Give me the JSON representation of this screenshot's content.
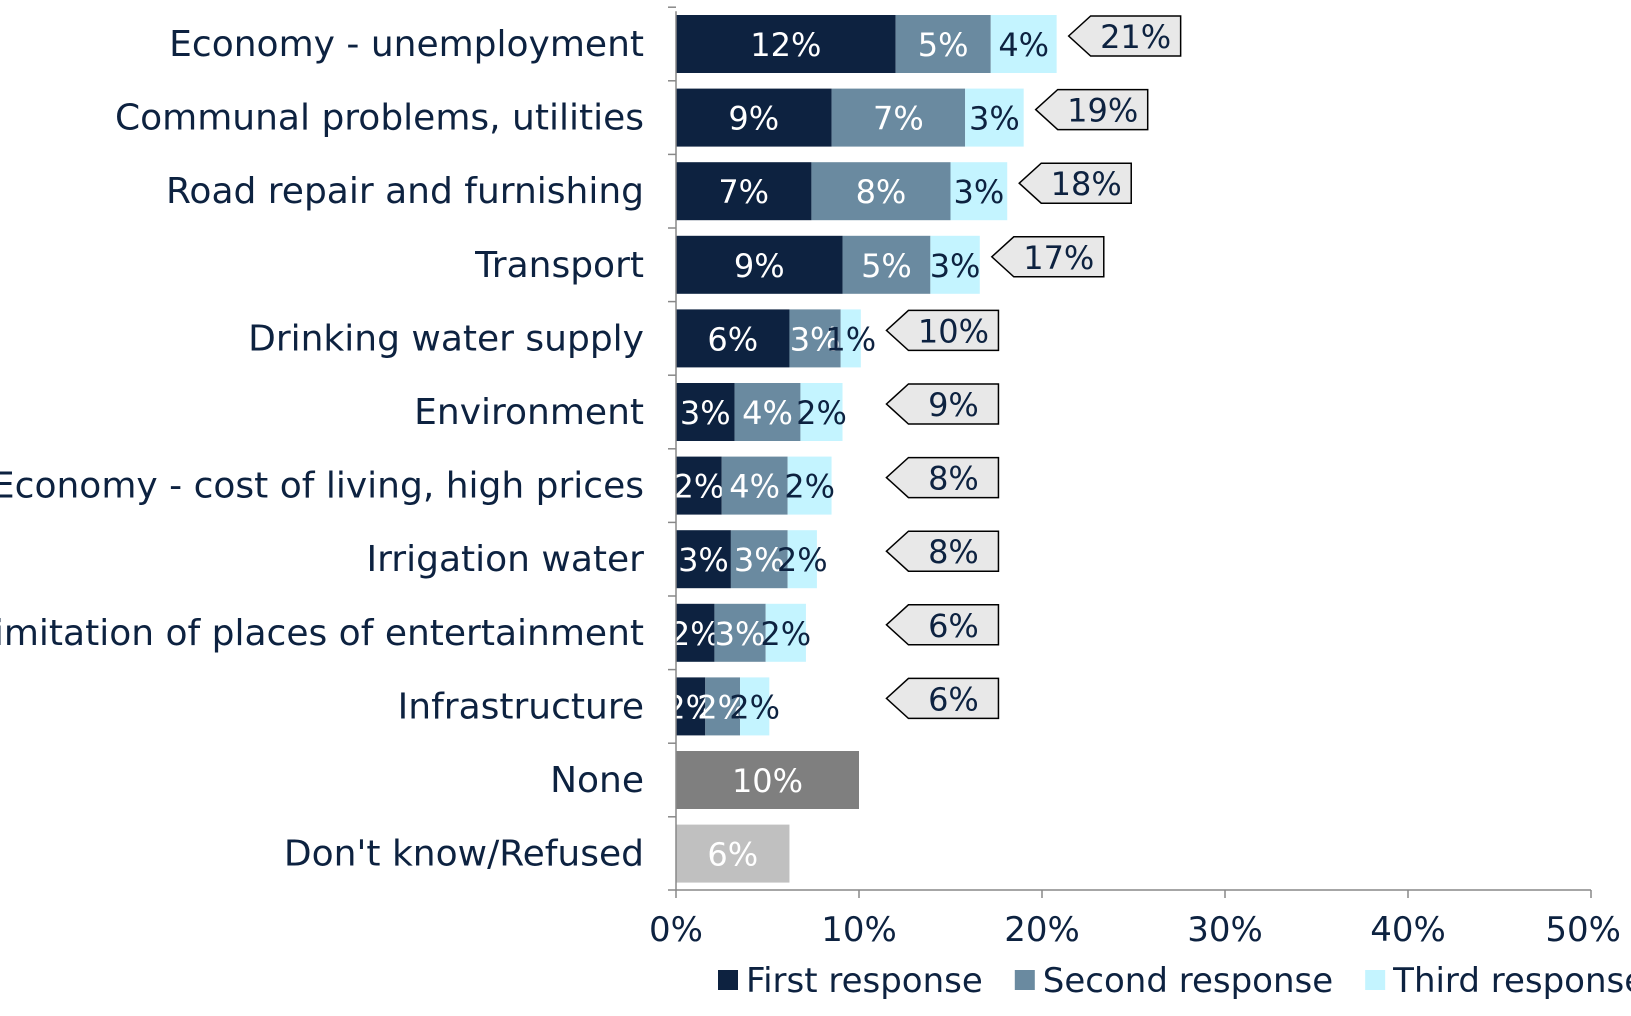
{
  "chart_data": {
    "type": "bar",
    "orientation": "horizontal",
    "stacked": true,
    "categories": [
      "Economy - unemployment",
      "Communal problems, utilities",
      "Road repair and furnishing",
      "Transport",
      "Drinking water supply",
      "Environment",
      "Economy - cost of living, high prices",
      "Irrigation water",
      "Limitation of places of entertainment",
      "Infrastructure",
      "None",
      "Don't know/Refused"
    ],
    "series": [
      {
        "name": "First response",
        "color": "#0d2240",
        "values": [
          12,
          8.5,
          7.4,
          9.1,
          6.2,
          3.2,
          2.5,
          3.0,
          2.1,
          1.6,
          null,
          null
        ],
        "labels": [
          "12%",
          "9%",
          "7%",
          "9%",
          "6%",
          "3%",
          "2%",
          "3%",
          "2%",
          "2%",
          "",
          ""
        ]
      },
      {
        "name": "Second response",
        "color": "#6a8aa0",
        "values": [
          5.2,
          7.3,
          7.6,
          4.8,
          2.8,
          3.6,
          3.6,
          3.1,
          2.8,
          1.9,
          null,
          null
        ],
        "labels": [
          "5%",
          "7%",
          "8%",
          "5%",
          "3%",
          "4%",
          "4%",
          "3%",
          "3%",
          "2%",
          "",
          ""
        ]
      },
      {
        "name": "Third response",
        "color": "#c4f4ff",
        "values": [
          3.6,
          3.2,
          3.1,
          2.7,
          1.1,
          2.3,
          2.4,
          1.6,
          2.2,
          1.6,
          null,
          null
        ],
        "labels": [
          "4%",
          "3%",
          "3%",
          "3%",
          "1%",
          "2%",
          "2%",
          "2%",
          "2%",
          "2%",
          "",
          ""
        ]
      }
    ],
    "single_bars": [
      {
        "category_index": 10,
        "value": 10.0,
        "label": "10%",
        "color": "#7f7f7f"
      },
      {
        "category_index": 11,
        "value": 6.2,
        "label": "6%",
        "color": "#c0c0c0"
      }
    ],
    "totals": [
      {
        "category_index": 0,
        "label": "21%",
        "value": 21
      },
      {
        "category_index": 1,
        "label": "19%",
        "value": 19
      },
      {
        "category_index": 2,
        "label": "18%",
        "value": 18
      },
      {
        "category_index": 3,
        "label": "17%",
        "value": 17
      },
      {
        "category_index": 4,
        "label": "10%",
        "value": 10
      },
      {
        "category_index": 5,
        "label": "9%",
        "value": 9
      },
      {
        "category_index": 6,
        "label": "8%",
        "value": 8
      },
      {
        "category_index": 7,
        "label": "8%",
        "value": 8
      },
      {
        "category_index": 8,
        "label": "6%",
        "value": 6
      },
      {
        "category_index": 9,
        "label": "6%",
        "value": 6
      }
    ],
    "xlim": [
      0,
      50
    ],
    "x_ticks": [
      0,
      10,
      20,
      30,
      40,
      50
    ],
    "x_tick_labels": [
      "0%",
      "10%",
      "20%",
      "30%",
      "40%",
      "50%"
    ],
    "grid": false,
    "legend_position": "bottom-right",
    "title": "",
    "xlabel": "",
    "ylabel": ""
  }
}
